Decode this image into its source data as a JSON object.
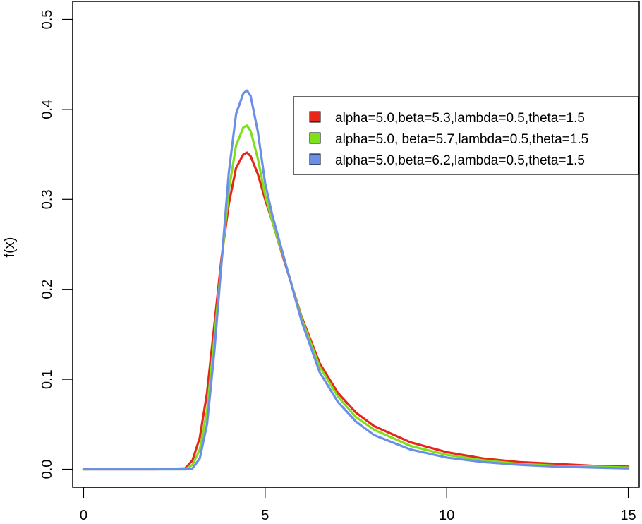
{
  "chart_data": {
    "type": "line",
    "title": "",
    "xlabel": "",
    "ylabel": "f(x)",
    "xlim": [
      -0.3,
      15.3
    ],
    "ylim": [
      -0.02,
      0.52
    ],
    "x_ticks": [
      0,
      5,
      10,
      15
    ],
    "x_tick_labels": [
      "0",
      "5",
      "10",
      "15"
    ],
    "y_ticks": [
      0.0,
      0.1,
      0.2,
      0.3,
      0.4,
      0.5
    ],
    "y_tick_labels": [
      "0.0",
      "0.1",
      "0.2",
      "0.3",
      "0.4",
      "0.5"
    ],
    "grid": false,
    "legend_position": "top-right",
    "x": [
      0,
      1,
      2,
      2.8,
      3.0,
      3.2,
      3.4,
      3.6,
      3.8,
      4.0,
      4.2,
      4.4,
      4.5,
      4.6,
      4.8,
      5.0,
      5.2,
      5.5,
      6.0,
      6.5,
      7.0,
      7.5,
      8.0,
      9.0,
      10.0,
      11.0,
      12.0,
      13.0,
      14.0,
      15.0
    ],
    "series": [
      {
        "name": "alpha=5.0,beta=5.3,lambda=0.5,theta=1.5",
        "color": "#e8251a",
        "values": [
          0,
          0,
          0,
          0.001,
          0.01,
          0.035,
          0.085,
          0.16,
          0.235,
          0.295,
          0.335,
          0.35,
          0.352,
          0.348,
          0.328,
          0.3,
          0.275,
          0.235,
          0.17,
          0.118,
          0.085,
          0.063,
          0.048,
          0.03,
          0.019,
          0.012,
          0.008,
          0.006,
          0.004,
          0.003
        ]
      },
      {
        "name": "alpha=5.0, beta=5.7,lambda=0.5,theta=1.5",
        "color": "#7ee01a",
        "values": [
          0,
          0,
          0,
          0,
          0.005,
          0.022,
          0.065,
          0.145,
          0.23,
          0.31,
          0.36,
          0.38,
          0.382,
          0.376,
          0.345,
          0.305,
          0.275,
          0.237,
          0.168,
          0.114,
          0.081,
          0.058,
          0.044,
          0.026,
          0.016,
          0.01,
          0.006,
          0.004,
          0.003,
          0.002
        ]
      },
      {
        "name": "alpha=5.0,beta=6.2,lambda=0.5,theta=1.5",
        "color": "#6b8ee8",
        "values": [
          0,
          0,
          0,
          0,
          0.001,
          0.012,
          0.05,
          0.13,
          0.23,
          0.33,
          0.395,
          0.418,
          0.421,
          0.415,
          0.375,
          0.318,
          0.282,
          0.238,
          0.165,
          0.108,
          0.075,
          0.053,
          0.038,
          0.022,
          0.013,
          0.008,
          0.005,
          0.003,
          0.002,
          0.001
        ]
      }
    ]
  }
}
